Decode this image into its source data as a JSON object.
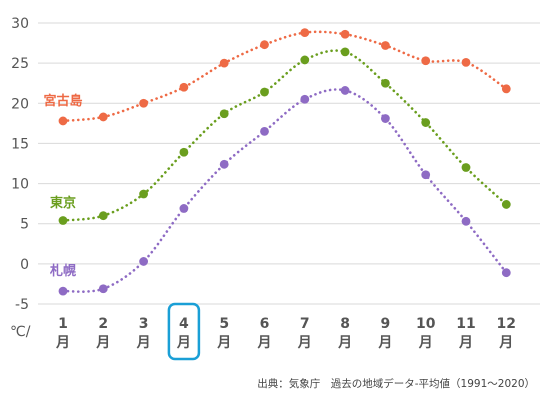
{
  "chart_data": {
    "type": "line",
    "categories": [
      "1月",
      "2月",
      "3月",
      "4月",
      "5月",
      "6月",
      "7月",
      "8月",
      "9月",
      "10月",
      "11月",
      "12月"
    ],
    "x_ticks": [
      {
        "num": "1",
        "unit": "月"
      },
      {
        "num": "2",
        "unit": "月"
      },
      {
        "num": "3",
        "unit": "月"
      },
      {
        "num": "4",
        "unit": "月"
      },
      {
        "num": "5",
        "unit": "月"
      },
      {
        "num": "6",
        "unit": "月"
      },
      {
        "num": "7",
        "unit": "月"
      },
      {
        "num": "8",
        "unit": "月"
      },
      {
        "num": "9",
        "unit": "月"
      },
      {
        "num": "10",
        "unit": "月"
      },
      {
        "num": "11",
        "unit": "月"
      },
      {
        "num": "12",
        "unit": "月"
      }
    ],
    "highlighted_category": "4月",
    "highlight_color": "#1a9fd6",
    "y_unit_label": "℃/",
    "ylim": [
      -5,
      30
    ],
    "y_ticks": [
      -5,
      0,
      5,
      10,
      15,
      20,
      25,
      30
    ],
    "grid": "horizontal",
    "line_style": "dotted",
    "series": [
      {
        "name": "宮古島",
        "color": "#ee6a45",
        "values": [
          17.8,
          18.3,
          20.0,
          22.0,
          25.0,
          27.3,
          28.8,
          28.6,
          27.2,
          25.3,
          25.1,
          21.8
        ]
      },
      {
        "name": "東京",
        "color": "#6a9e1e",
        "values": [
          5.4,
          6.0,
          8.7,
          13.9,
          18.7,
          21.4,
          25.4,
          26.4,
          22.5,
          17.6,
          12.0,
          7.4
        ]
      },
      {
        "name": "札幌",
        "color": "#8e6bc4",
        "values": [
          -3.4,
          -3.1,
          0.3,
          6.9,
          12.4,
          16.5,
          20.5,
          21.6,
          18.1,
          11.1,
          5.3,
          -1.1
        ]
      }
    ]
  },
  "footer": {
    "source": "出典：気象庁　過去の地域データ-平均値（1991～2020）"
  }
}
